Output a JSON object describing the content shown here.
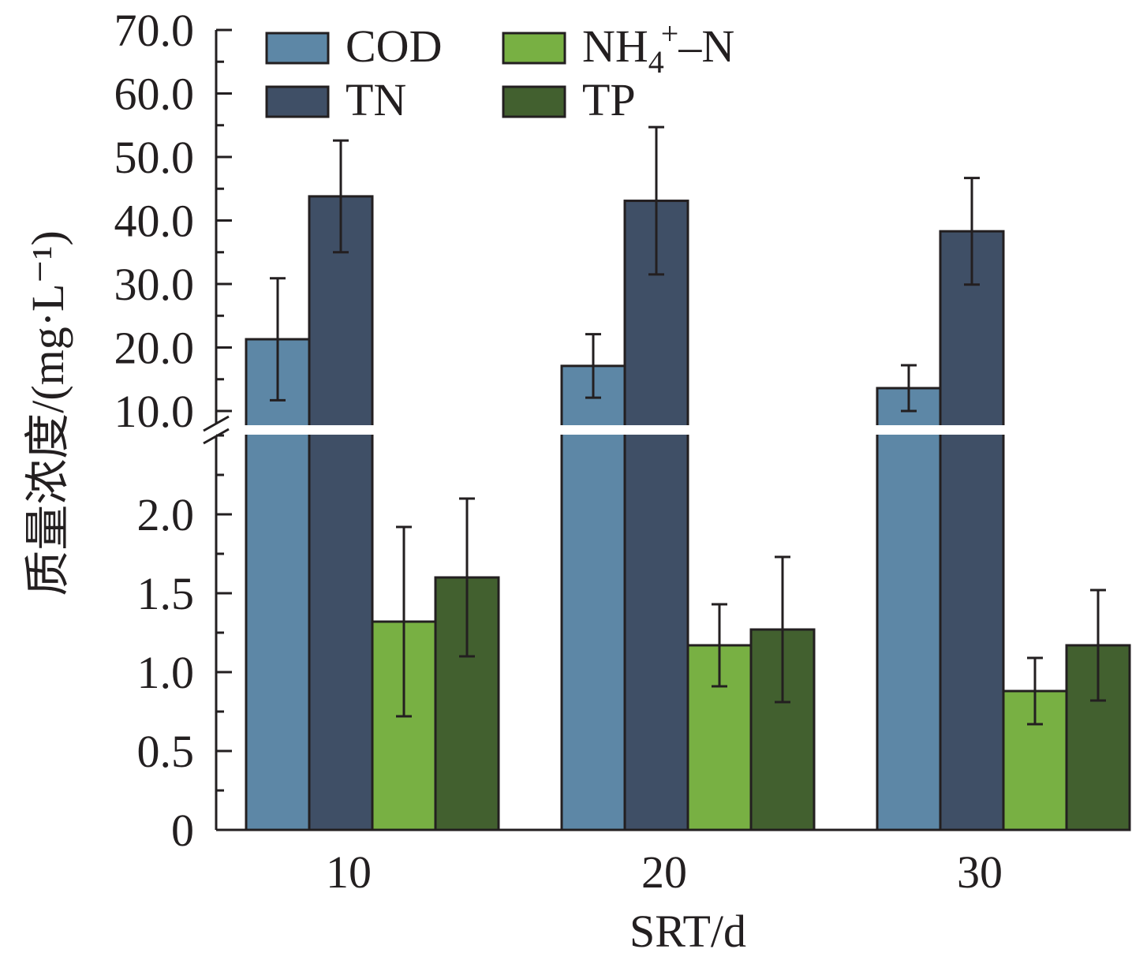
{
  "chart_data": {
    "type": "bar",
    "xlabel": "SRT/d",
    "ylabel": "质量浓度/(mg·L⁻¹)",
    "categories": [
      "10",
      "20",
      "30"
    ],
    "y_axis_break": true,
    "upper_segment": {
      "ylim": [
        10.0,
        70.0
      ],
      "ticks": [
        "10.0",
        "20.0",
        "30.0",
        "40.0",
        "50.0",
        "60.0",
        "70.0"
      ]
    },
    "lower_segment": {
      "ylim": [
        0,
        2.5
      ],
      "ticks": [
        "0",
        "0.5",
        "1.0",
        "1.5",
        "2.0"
      ]
    },
    "series": [
      {
        "name": "COD",
        "segment": "upper",
        "color": "#5d87a6",
        "values": [
          21.3,
          17.1,
          13.6
        ],
        "errors": [
          9.6,
          5.0,
          3.6
        ]
      },
      {
        "name": "TN",
        "segment": "upper",
        "color": "#3f4f66",
        "values": [
          43.8,
          43.1,
          38.3
        ],
        "errors": [
          8.8,
          11.6,
          8.4
        ]
      },
      {
        "name": "NH4+-N",
        "segment": "lower",
        "color": "#78b043",
        "values": [
          1.32,
          1.17,
          0.88
        ],
        "errors": [
          0.6,
          0.26,
          0.21
        ]
      },
      {
        "name": "TP",
        "segment": "lower",
        "color": "#42602f",
        "values": [
          1.6,
          1.27,
          1.17
        ],
        "errors": [
          0.5,
          0.46,
          0.35
        ]
      }
    ],
    "legend": {
      "placement": "top-left",
      "items": [
        {
          "series": "COD",
          "text": "COD"
        },
        {
          "series": "NH4+-N",
          "text_main": "NH",
          "text_sub": "4",
          "text_sup": "+",
          "text_rest": "–N"
        },
        {
          "series": "TN",
          "text": "TN"
        },
        {
          "series": "TP",
          "text": "TP"
        }
      ]
    }
  }
}
